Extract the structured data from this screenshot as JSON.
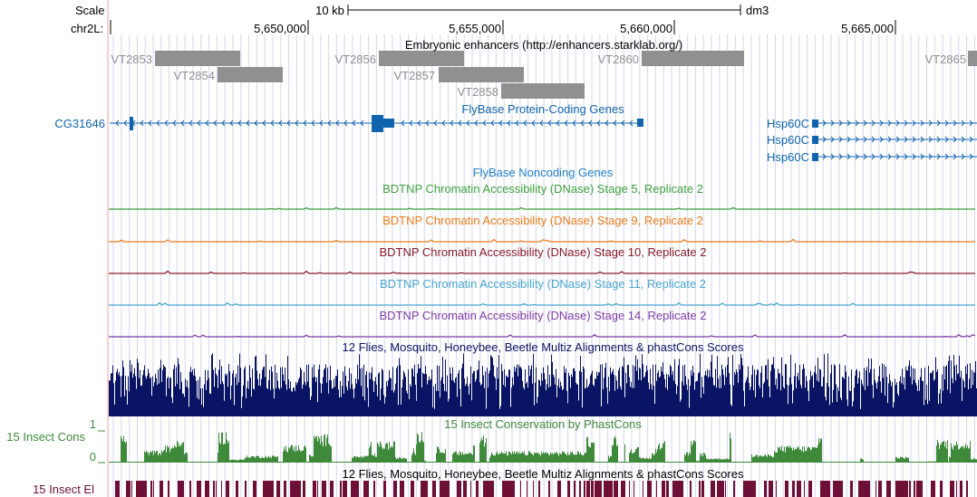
{
  "browser": {
    "assembly": "dm3",
    "scale": {
      "label": "Scale",
      "bar_text": "10 kb"
    },
    "chrom_label": "chr2L:",
    "ruler_ticks": [
      "5,650,000",
      "5,655,000",
      "5,660,000",
      "5,665,000"
    ],
    "colors": {
      "enhancer": "#909090",
      "protein_gene": "#0f64ad",
      "stage5": "#3ca13c",
      "stage9": "#f07a19",
      "stage10": "#8b1a2a",
      "stage11": "#46a5d2",
      "stage14": "#7e3ca7",
      "multiz": "#0a1464",
      "phastcons": "#3e8a3a",
      "elements": "#6e0f36",
      "grid": "#d6d6f0",
      "left_edge": "#f2a0a0"
    },
    "tracks": {
      "enhancers": {
        "title": "Embryonic enhancers (http://enhancers.starklab.org/)",
        "items": [
          {
            "name": "VT2853",
            "row": 0
          },
          {
            "name": "VT2854",
            "row": 1
          },
          {
            "name": "VT2856",
            "row": 0
          },
          {
            "name": "VT2857",
            "row": 1
          },
          {
            "name": "VT2858",
            "row": 2
          },
          {
            "name": "VT2860",
            "row": 0
          },
          {
            "name": "VT2865",
            "row": 0
          }
        ]
      },
      "protein_coding": {
        "title": "FlyBase Protein-Coding Genes",
        "genes": [
          {
            "name": "CG31646",
            "strand": "-"
          },
          {
            "name": "Hsp60C",
            "strand": "+"
          },
          {
            "name": "Hsp60C",
            "strand": "+"
          },
          {
            "name": "Hsp60C",
            "strand": "+"
          }
        ]
      },
      "noncoding": {
        "title": "FlyBase Noncoding Genes"
      },
      "dnase": [
        {
          "title": "BDTNP Chromatin Accessibility (DNase) Stage 5, Replicate 2",
          "color_key": "stage5"
        },
        {
          "title": "BDTNP Chromatin Accessibility (DNase) Stage 9, Replicate 2",
          "color_key": "stage9"
        },
        {
          "title": "BDTNP Chromatin Accessibility (DNase) Stage 10, Replicate 2",
          "color_key": "stage10"
        },
        {
          "title": "BDTNP Chromatin Accessibility (DNase) Stage 11, Replicate 2",
          "color_key": "stage11"
        },
        {
          "title": "BDTNP Chromatin Accessibility (DNase) Stage 14, Replicate 2",
          "color_key": "stage14"
        }
      ],
      "multiz": {
        "title": "12 Flies, Mosquito, Honeybee, Beetle Multiz Alignments & phastCons Scores"
      },
      "phastcons": {
        "title": "15 Insect Conservation by PhastCons",
        "left_label": "15 Insect Cons",
        "axis_max": "1",
        "axis_min": "0"
      },
      "elements": {
        "title": "12 Flies, Mosquito, Honeybee, Beetle Multiz Alignments & phastCons Scores",
        "left_label": "15 Insect El"
      }
    }
  }
}
